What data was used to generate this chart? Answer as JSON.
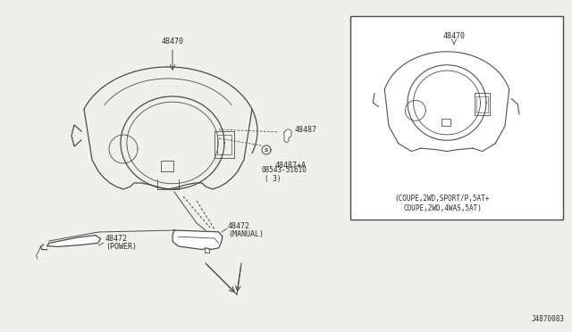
{
  "bg_color": "#f0f0eb",
  "line_color": "#4a4a4a",
  "text_color": "#2a2a2a",
  "diagram_title": "J4870083",
  "label_48470": "48470",
  "label_48487": "48487",
  "label_48487a": "48487+A",
  "label_screw": "08543-51610",
  "label_screw2": "( 3)",
  "label_manual": "48472",
  "label_manual2": "(MANUAL)",
  "label_power": "48472",
  "label_power2": "(POWER)",
  "inset_label": "48470",
  "inset_text1": "(COUPE,2WD,SPORT/P,5AT+",
  "inset_text2": "COUPE,2WD,4WAS,5AT)",
  "font_size": 6.0,
  "lw_main": 0.9,
  "lw_detail": 0.6
}
